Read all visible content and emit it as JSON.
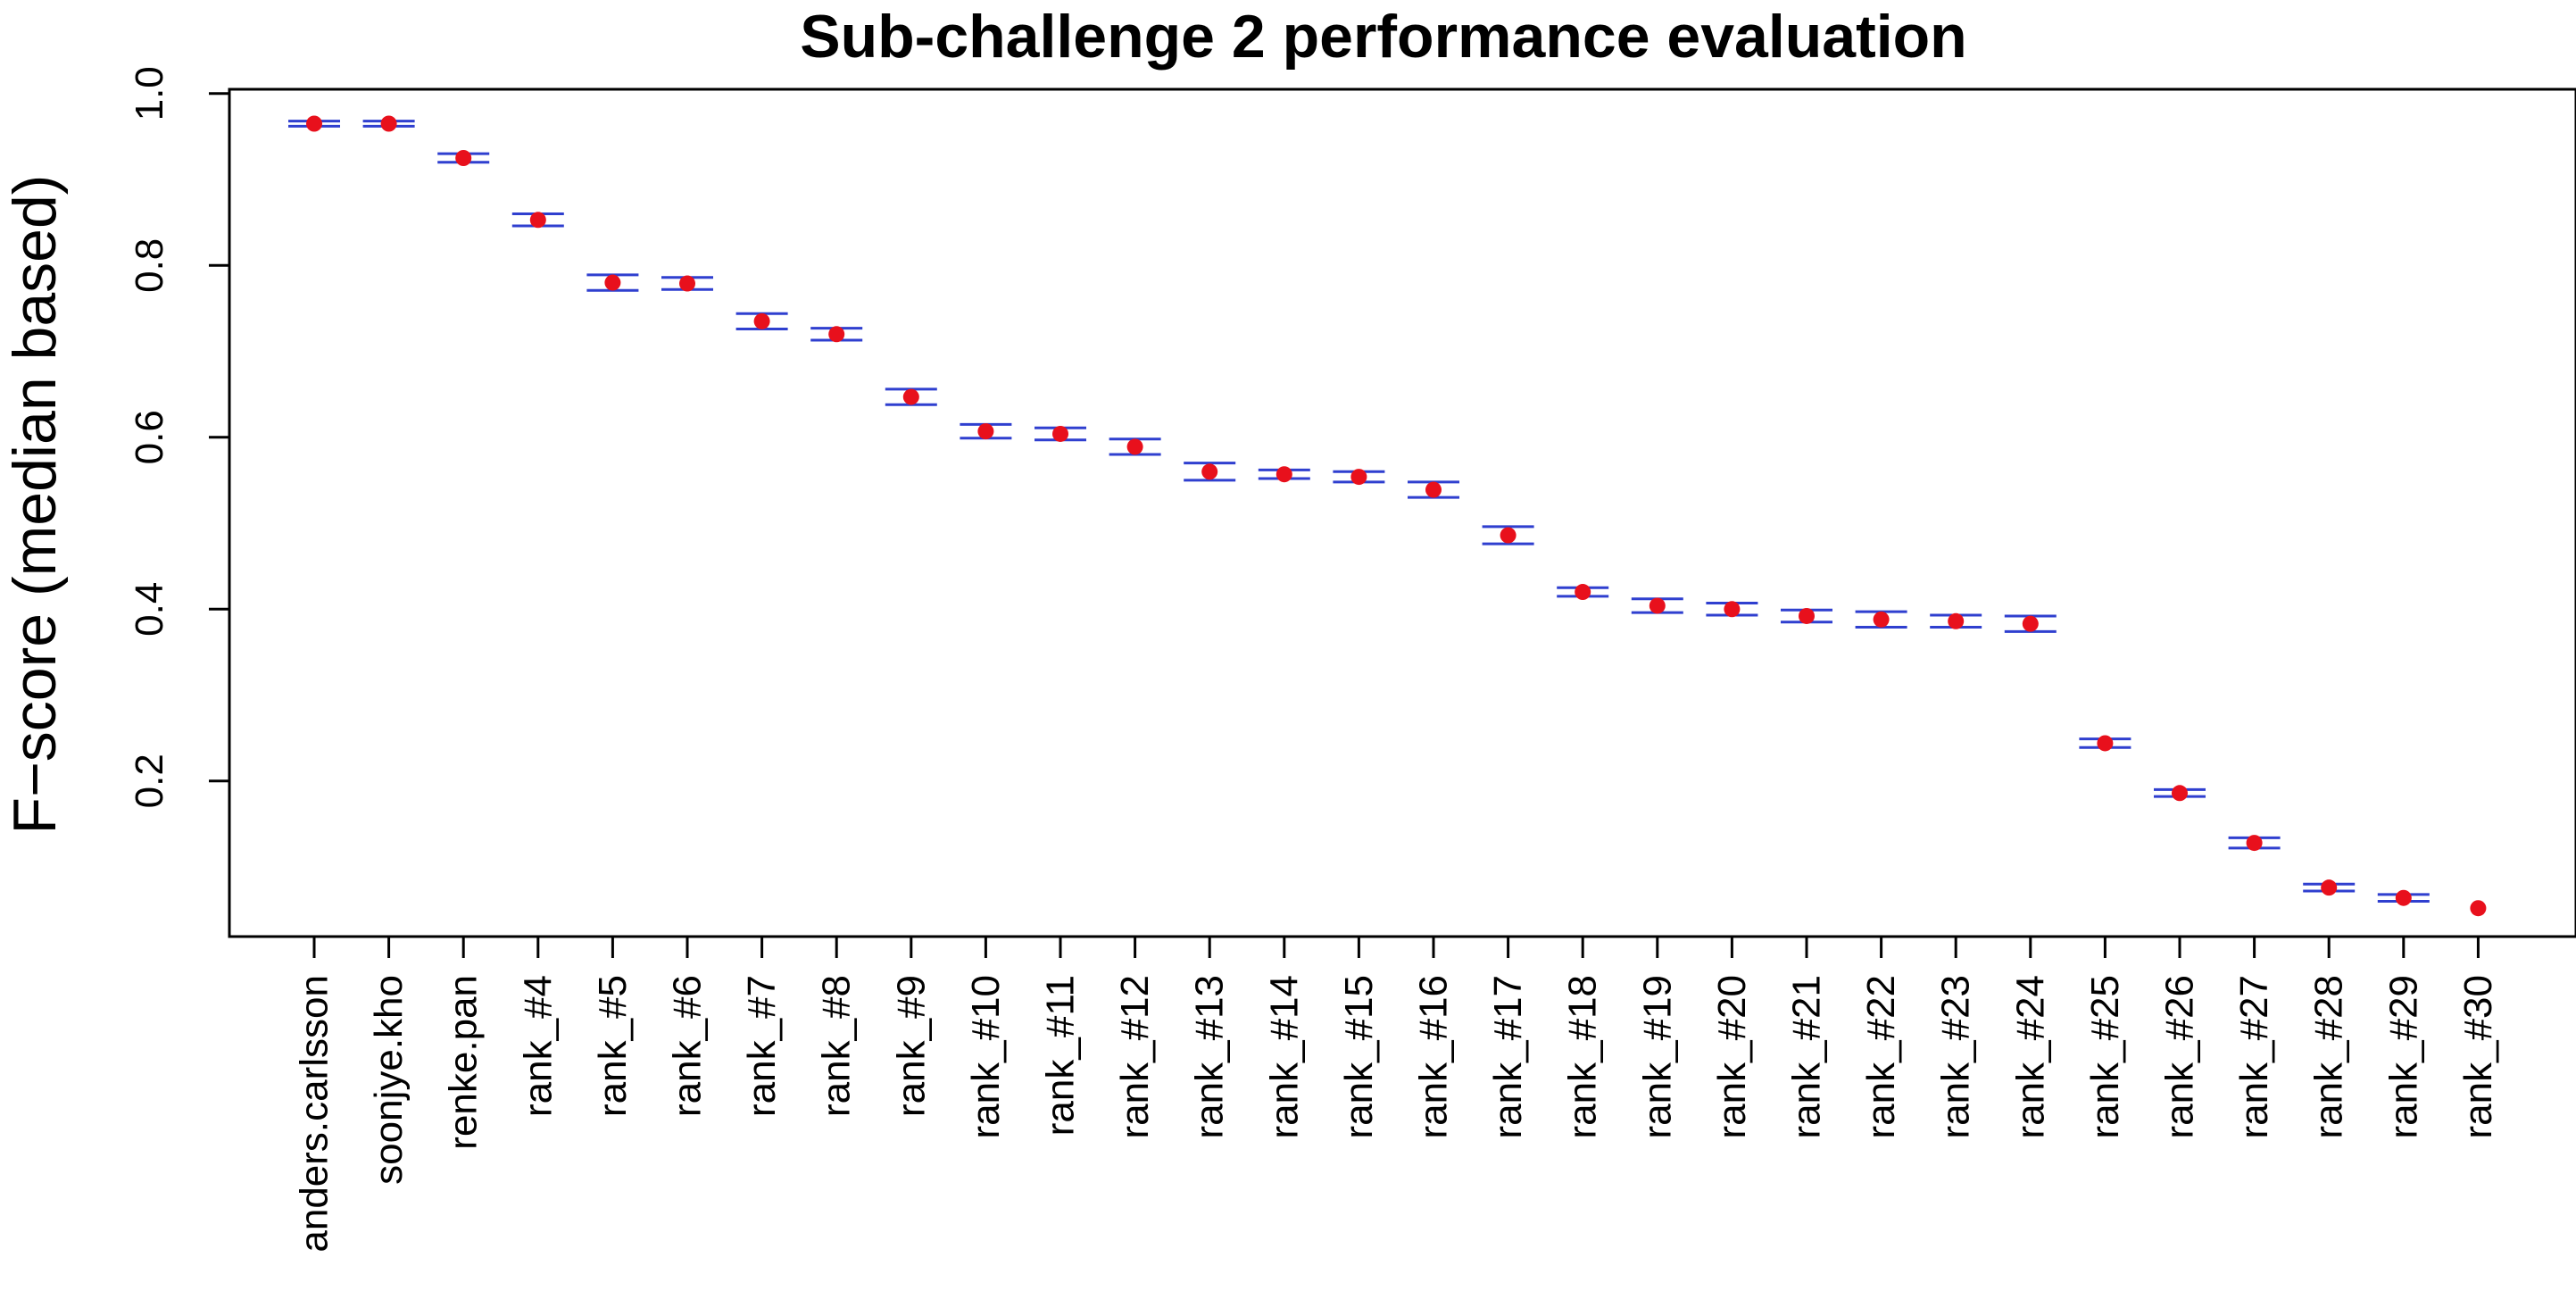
{
  "chart_data": {
    "type": "scatter",
    "title": "Sub-challenge 2 performance evaluation",
    "xlabel": "",
    "ylabel": "F−score (median based)",
    "ylim": [
      0.019,
      1.005
    ],
    "yticks": [
      "0.2",
      "0.4",
      "0.6",
      "0.8",
      "1.0"
    ],
    "grid": false,
    "legend": "none",
    "colors": {
      "point": "#e8101c",
      "errorbar": "#2f3fcf",
      "axis": "#000000"
    },
    "categories": [
      "anders.carlsson",
      "soonjye.kho",
      "renke.pan",
      "rank_#4",
      "rank_#5",
      "rank_#6",
      "rank_#7",
      "rank_#8",
      "rank_#9",
      "rank_#10",
      "rank_#11",
      "rank_#12",
      "rank_#13",
      "rank_#14",
      "rank_#15",
      "rank_#16",
      "rank_#17",
      "rank_#18",
      "rank_#19",
      "rank_#20",
      "rank_#21",
      "rank_#22",
      "rank_#23",
      "rank_#24",
      "rank_#25",
      "rank_#26",
      "rank_#27",
      "rank_#28",
      "rank_#29",
      "rank_#30"
    ],
    "values": [
      0.965,
      0.965,
      0.925,
      0.853,
      0.78,
      0.779,
      0.735,
      0.72,
      0.647,
      0.607,
      0.604,
      0.589,
      0.56,
      0.557,
      0.554,
      0.539,
      0.486,
      0.42,
      0.404,
      0.4,
      0.392,
      0.388,
      0.386,
      0.383,
      0.244,
      0.186,
      0.128,
      0.076,
      0.064,
      0.052
    ],
    "err_high": [
      0.968,
      0.968,
      0.93,
      0.86,
      0.789,
      0.786,
      0.744,
      0.727,
      0.656,
      0.615,
      0.611,
      0.598,
      0.57,
      0.562,
      0.56,
      0.548,
      0.496,
      0.425,
      0.412,
      0.407,
      0.399,
      0.397,
      0.393,
      0.392,
      0.249,
      0.19,
      0.134,
      0.08,
      0.068,
      0.052
    ],
    "err_low": [
      0.962,
      0.962,
      0.92,
      0.846,
      0.771,
      0.772,
      0.726,
      0.713,
      0.638,
      0.599,
      0.597,
      0.58,
      0.55,
      0.552,
      0.548,
      0.53,
      0.476,
      0.415,
      0.396,
      0.393,
      0.385,
      0.379,
      0.379,
      0.374,
      0.239,
      0.182,
      0.122,
      0.072,
      0.06,
      0.052
    ]
  }
}
